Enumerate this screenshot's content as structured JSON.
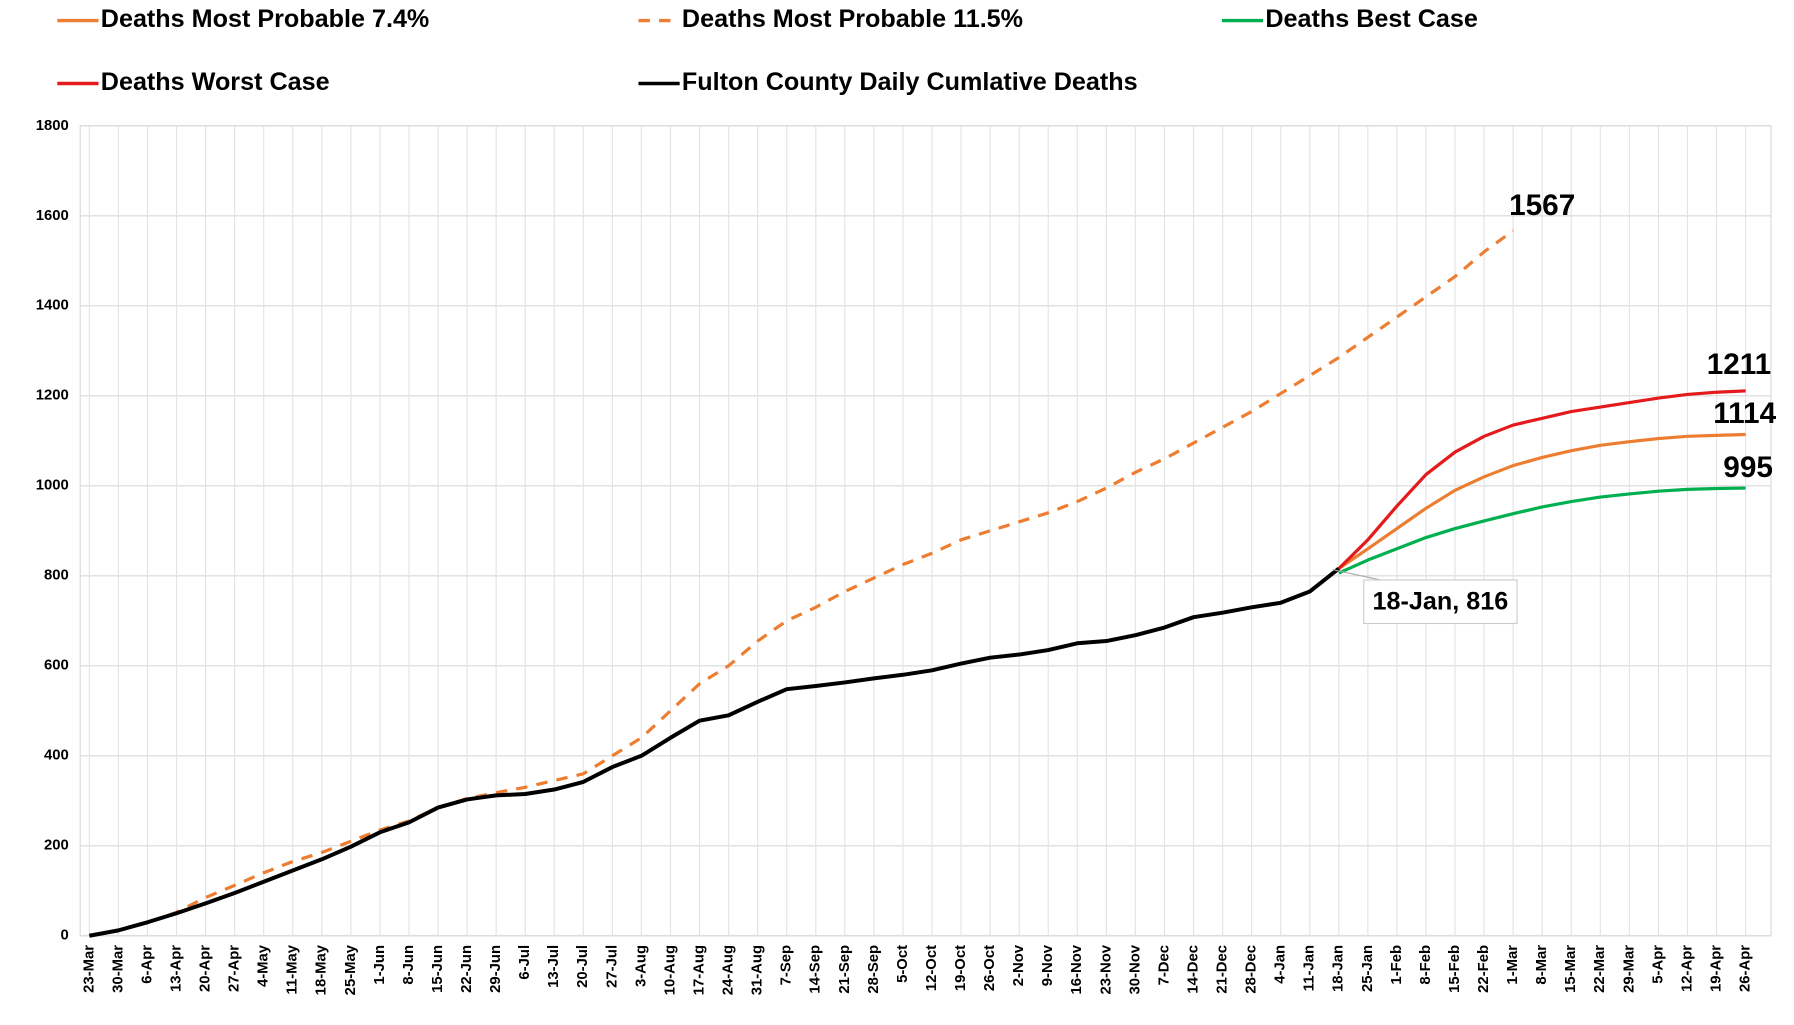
{
  "chart_data": {
    "type": "line",
    "categories": [
      "23-Mar",
      "30-Mar",
      "6-Apr",
      "13-Apr",
      "20-Apr",
      "27-Apr",
      "4-May",
      "11-May",
      "18-May",
      "25-May",
      "1-Jun",
      "8-Jun",
      "15-Jun",
      "22-Jun",
      "29-Jun",
      "6-Jul",
      "13-Jul",
      "20-Jul",
      "27-Jul",
      "3-Aug",
      "10-Aug",
      "17-Aug",
      "24-Aug",
      "31-Aug",
      "7-Sep",
      "14-Sep",
      "21-Sep",
      "28-Sep",
      "5-Oct",
      "12-Oct",
      "19-Oct",
      "26-Oct",
      "2-Nov",
      "9-Nov",
      "16-Nov",
      "23-Nov",
      "30-Nov",
      "7-Dec",
      "14-Dec",
      "21-Dec",
      "28-Dec",
      "4-Jan",
      "11-Jan",
      "18-Jan",
      "25-Jan",
      "1-Feb",
      "8-Feb",
      "15-Feb",
      "22-Feb",
      "1-Mar",
      "8-Mar",
      "15-Mar",
      "22-Mar",
      "29-Mar",
      "5-Apr",
      "12-Apr",
      "19-Apr",
      "26-Apr"
    ],
    "series": [
      {
        "name": "Deaths Most Probable 7.4%",
        "color": "#ed7d31",
        "dash": false,
        "values": [
          null,
          null,
          null,
          null,
          null,
          null,
          null,
          null,
          null,
          null,
          null,
          null,
          null,
          null,
          null,
          null,
          null,
          null,
          null,
          null,
          null,
          null,
          null,
          null,
          null,
          null,
          null,
          null,
          null,
          null,
          null,
          null,
          null,
          null,
          null,
          null,
          null,
          null,
          null,
          null,
          null,
          null,
          null,
          816,
          860,
          905,
          950,
          990,
          1020,
          1045,
          1063,
          1078,
          1090,
          1098,
          1105,
          1110,
          1112,
          1114
        ]
      },
      {
        "name": "Deaths Most Probable 11.5%",
        "color": "#ed7d31",
        "dash": true,
        "values": [
          0,
          12,
          30,
          52,
          85,
          112,
          140,
          165,
          185,
          210,
          235,
          255,
          285,
          305,
          318,
          330,
          345,
          360,
          400,
          440,
          500,
          560,
          600,
          655,
          700,
          730,
          765,
          795,
          825,
          850,
          880,
          900,
          920,
          940,
          965,
          995,
          1030,
          1060,
          1095,
          1130,
          1165,
          1205,
          1245,
          1285,
          1330,
          1375,
          1420,
          1465,
          1520,
          1567,
          null,
          null,
          null,
          null,
          null,
          null,
          null,
          null
        ]
      },
      {
        "name": "Deaths Best Case",
        "color": "#00b050",
        "dash": false,
        "values": [
          null,
          null,
          null,
          null,
          null,
          null,
          null,
          null,
          null,
          null,
          null,
          null,
          null,
          null,
          null,
          null,
          null,
          null,
          null,
          null,
          null,
          null,
          null,
          null,
          null,
          null,
          null,
          null,
          null,
          null,
          null,
          null,
          null,
          null,
          null,
          null,
          null,
          null,
          null,
          null,
          null,
          null,
          null,
          806,
          835,
          860,
          885,
          905,
          922,
          938,
          953,
          965,
          975,
          982,
          988,
          992,
          994,
          995
        ]
      },
      {
        "name": "Deaths Worst Case",
        "color": "#e41a1c",
        "dash": false,
        "values": [
          null,
          null,
          null,
          null,
          null,
          null,
          null,
          null,
          null,
          null,
          null,
          null,
          null,
          null,
          null,
          null,
          null,
          null,
          null,
          null,
          null,
          null,
          null,
          null,
          null,
          null,
          null,
          null,
          null,
          null,
          null,
          null,
          null,
          null,
          null,
          null,
          null,
          null,
          null,
          null,
          null,
          null,
          null,
          816,
          880,
          955,
          1025,
          1075,
          1110,
          1135,
          1150,
          1165,
          1175,
          1185,
          1195,
          1203,
          1208,
          1211
        ]
      },
      {
        "name": "Fulton County Daily Cumlative Deaths",
        "color": "#000000",
        "dash": false,
        "values": [
          0,
          12,
          30,
          50,
          72,
          95,
          120,
          145,
          170,
          198,
          230,
          252,
          285,
          303,
          312,
          315,
          325,
          342,
          375,
          400,
          440,
          478,
          490,
          520,
          548,
          555,
          563,
          572,
          580,
          590,
          605,
          618,
          625,
          635,
          650,
          655,
          668,
          685,
          708,
          718,
          730,
          740,
          765,
          816,
          null,
          null,
          null,
          null,
          null,
          null,
          null,
          null,
          null,
          null,
          null,
          null,
          null,
          null
        ]
      }
    ],
    "annotations": [
      "1567",
      "1211",
      "1114",
      "995",
      "18-Jan, 816"
    ],
    "ylim": [
      0,
      1800
    ],
    "yticks": [
      0,
      200,
      400,
      600,
      800,
      1000,
      1200,
      1400,
      1600,
      1800
    ],
    "grid": true
  }
}
